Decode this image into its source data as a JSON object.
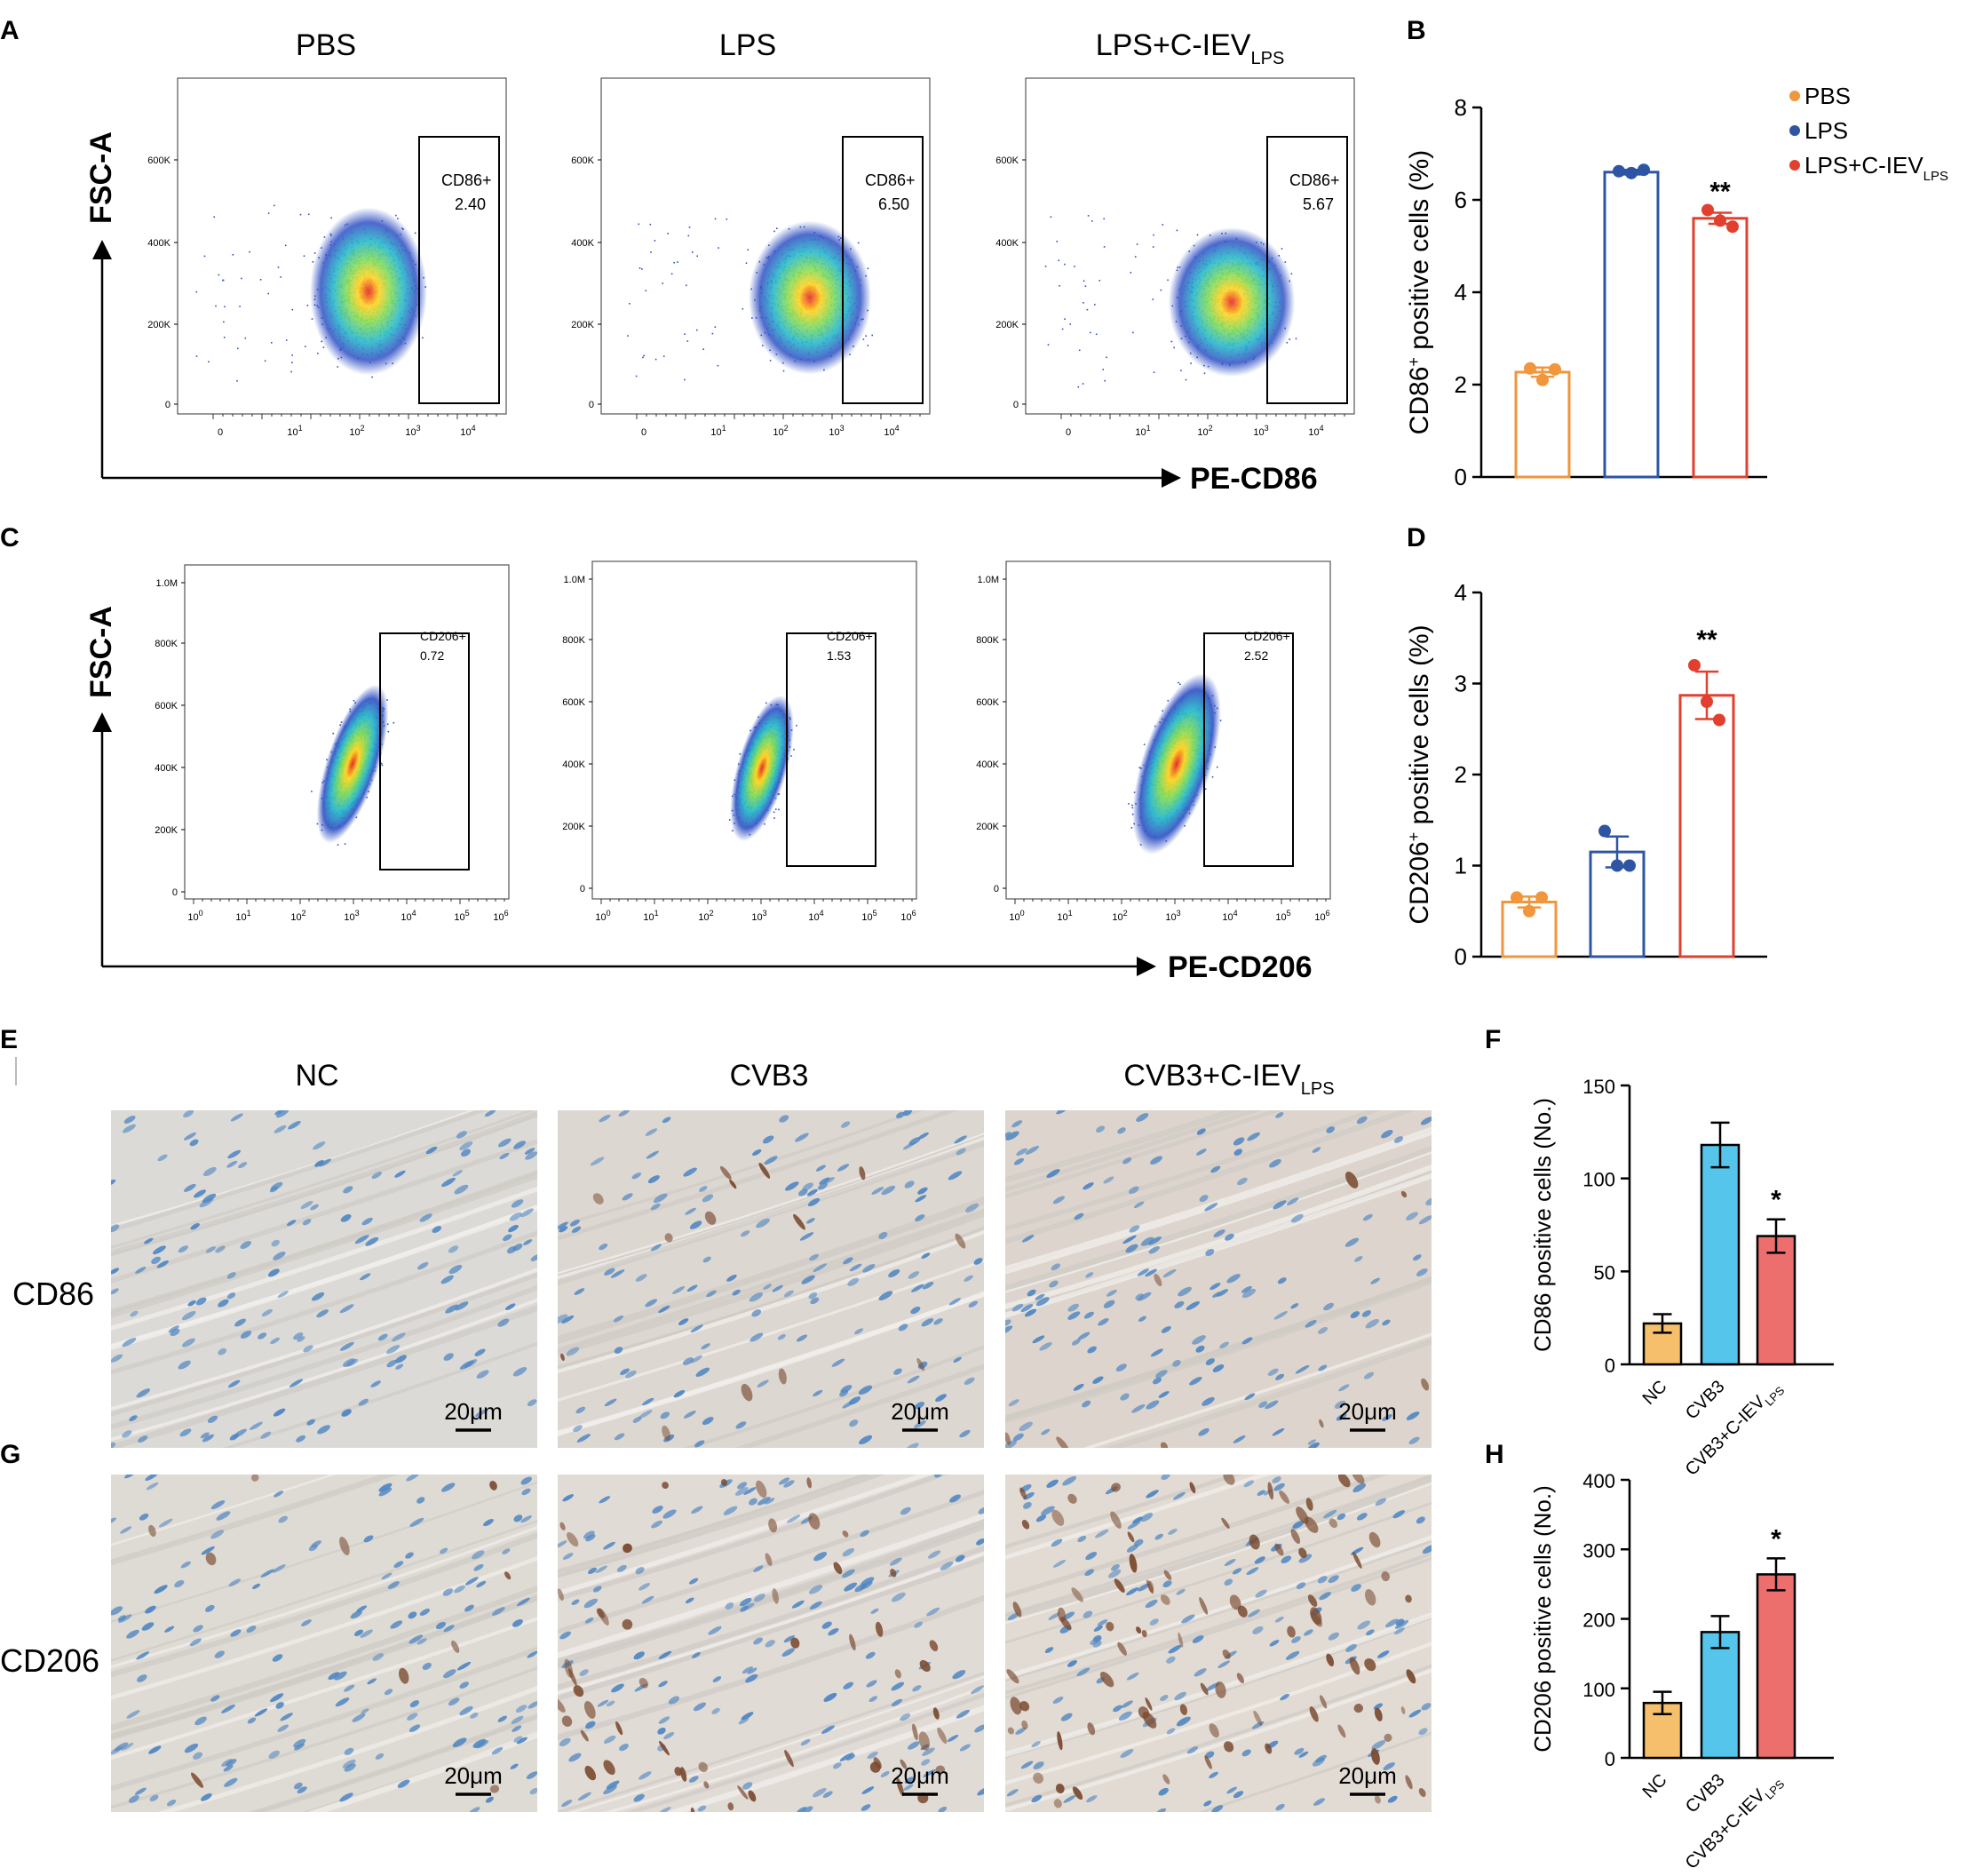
{
  "panel_letters": {
    "A": "A",
    "B": "B",
    "C": "C",
    "D": "D",
    "E": "E",
    "F": "F",
    "G": "G",
    "H": "H"
  },
  "flow_A": {
    "titles": [
      "PBS",
      "LPS",
      "LPS+C-IEV"
    ],
    "title_subscript": "LPS",
    "y_axis_label": "FSC-A",
    "x_axis_label": "PE-CD86",
    "y_ticks": [
      "600K",
      "400K",
      "200K",
      "0"
    ],
    "x_ticks": [
      "0",
      "10",
      "10",
      "10",
      "10"
    ],
    "x_exponents": [
      "",
      "1",
      "2",
      "3",
      "4"
    ],
    "gate_name": "CD86+",
    "gate_values": [
      "2.40",
      "6.50",
      "5.67"
    ]
  },
  "flow_C": {
    "y_axis_label": "FSC-A",
    "x_axis_label": "PE-CD206",
    "y_ticks": [
      "1.0M",
      "800K",
      "600K",
      "400K",
      "200K",
      "0"
    ],
    "x_ticks": [
      "10",
      "10",
      "10",
      "10",
      "10",
      "10",
      "10"
    ],
    "x_exponents": [
      "0",
      "1",
      "2",
      "3",
      "4",
      "5",
      "6"
    ],
    "gate_name": "CD206+",
    "gate_values": [
      "0.72",
      "1.53",
      "2.52"
    ]
  },
  "histology": {
    "titles": [
      "NC",
      "CVB3",
      "CVB3+C-IEV"
    ],
    "title_subscript": "LPS",
    "row_labels": [
      "CD86",
      "CD206"
    ],
    "scale_bar": "20μm",
    "colors": {
      "tissue": "#dcdad6",
      "nuclei": "#4f86c2",
      "dab": "#7a4a30"
    }
  },
  "chart_data": [
    {
      "panel": "B",
      "type": "bar",
      "categories": [
        "PBS",
        "LPS",
        "LPS+C-IEV"
      ],
      "category_subscript": "LPS",
      "values": [
        2.27,
        6.6,
        5.6
      ],
      "errors": [
        0.1,
        0.05,
        0.12
      ],
      "points": [
        [
          2.35,
          2.1,
          2.33
        ],
        [
          6.62,
          6.58,
          6.65
        ],
        [
          5.78,
          5.55,
          5.42
        ]
      ],
      "ylabel": "CD86",
      "ylabel_sup": "+",
      "ylabel_rest": " positive cells (%)",
      "ylim": [
        0,
        8
      ],
      "yticks": [
        "0",
        "2",
        "4",
        "6",
        "8"
      ],
      "significance": [
        "",
        "",
        "**"
      ],
      "colors": [
        "#f0963c",
        "#2e55a4",
        "#e2402f"
      ],
      "style": "open"
    },
    {
      "panel": "D",
      "type": "bar",
      "categories": [
        "PBS",
        "LPS",
        "LPS+C-IEV"
      ],
      "values": [
        0.6,
        1.15,
        2.87
      ],
      "errors": [
        0.06,
        0.17,
        0.26
      ],
      "points": [
        [
          0.65,
          0.5,
          0.65
        ],
        [
          1.38,
          1.0,
          1.0
        ],
        [
          3.2,
          2.8,
          2.6
        ]
      ],
      "ylabel": "CD206",
      "ylabel_sup": "+",
      "ylabel_rest": " positive cells (%)",
      "ylim": [
        0,
        4
      ],
      "yticks": [
        "0",
        "1",
        "2",
        "3",
        "4"
      ],
      "significance": [
        "",
        "",
        "**"
      ],
      "colors": [
        "#f0963c",
        "#2e55a4",
        "#e2402f"
      ],
      "style": "open"
    },
    {
      "panel": "F",
      "type": "bar",
      "categories": [
        "NC",
        "CVB3",
        "CVB3+C-IEV"
      ],
      "category_subscript": "LPS",
      "values": [
        22,
        118,
        69
      ],
      "errors": [
        5,
        12,
        9
      ],
      "ylabel": "CD86 positive cells (No.)",
      "ylim": [
        0,
        150
      ],
      "yticks": [
        "0",
        "50",
        "100",
        "150"
      ],
      "significance": [
        "",
        "",
        "*"
      ],
      "colors": [
        "#f6bf6c",
        "#55c5eb",
        "#ec6f6e"
      ],
      "style": "filled"
    },
    {
      "panel": "H",
      "type": "bar",
      "categories": [
        "NC",
        "CVB3",
        "CVB3+C-IEV"
      ],
      "category_subscript": "LPS",
      "values": [
        79,
        181,
        264
      ],
      "errors": [
        16,
        23,
        23
      ],
      "ylabel": "CD206 positive cells (No.)",
      "ylim": [
        0,
        400
      ],
      "yticks": [
        "0",
        "100",
        "200",
        "300",
        "400"
      ],
      "significance": [
        "",
        "",
        "*"
      ],
      "colors": [
        "#f6bf6c",
        "#55c5eb",
        "#ec6f6e"
      ],
      "style": "filled"
    }
  ],
  "legend_B": {
    "entries": [
      "PBS",
      "LPS",
      "LPS+C-IEV"
    ],
    "subscript": "LPS",
    "colors": [
      "#f0963c",
      "#2e55a4",
      "#e2402f"
    ]
  }
}
